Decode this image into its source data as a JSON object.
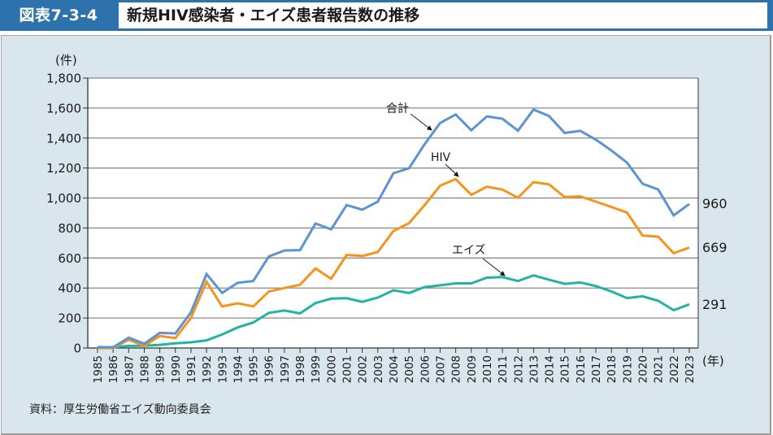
{
  "header": {
    "figure_label": "図表7-3-4",
    "title": "新規HIV感染者・エイズ患者報告数の推移"
  },
  "source": "資料：厚生労働省エイズ動向委員会",
  "colors": {
    "total": "#5b93d3",
    "hiv": "#f7941d",
    "aids": "#21b3a3",
    "header_bg": "#2e72ad",
    "panel_bg": "#dae6ee"
  },
  "chart_data": {
    "type": "line",
    "title": "新規HIV感染者・エイズ患者報告数の推移",
    "ylabel": "(件)",
    "xlabel": "(年)",
    "ylim": [
      0,
      1800
    ],
    "yticks": [
      0,
      200,
      400,
      600,
      800,
      1000,
      1200,
      1400,
      1600,
      1800
    ],
    "ytick_labels": [
      "0",
      "200",
      "400",
      "600",
      "800",
      "1,000",
      "1,200",
      "1,400",
      "1,600",
      "1,800"
    ],
    "grid": true,
    "x": [
      "1985",
      "1986",
      "1987",
      "1988",
      "1989",
      "1990",
      "1991",
      "1992",
      "1993",
      "1994",
      "1995",
      "1996",
      "1997",
      "1998",
      "1999",
      "2000",
      "2001",
      "2002",
      "2003",
      "2004",
      "2005",
      "2006",
      "2007",
      "2008",
      "2009",
      "2010",
      "2011",
      "2012",
      "2013",
      "2014",
      "2015",
      "2016",
      "2017",
      "2018",
      "2019",
      "2020",
      "2021",
      "2022",
      "2023"
    ],
    "series": [
      {
        "name": "合計",
        "key": "total",
        "values": [
          6,
          5,
          69,
          29,
          101,
          97,
          238,
          493,
          367,
          435,
          447,
          610,
          650,
          653,
          830,
          791,
          953,
          922,
          976,
          1165,
          1199,
          1358,
          1500,
          1557,
          1452,
          1544,
          1529,
          1449,
          1590,
          1546,
          1434,
          1448,
          1389,
          1317,
          1236,
          1095,
          1057,
          884,
          960
        ],
        "end_label": "960"
      },
      {
        "name": "HIV",
        "key": "hiv",
        "values": [
          0,
          0,
          55,
          14,
          80,
          66,
          200,
          442,
          277,
          298,
          277,
          376,
          400,
          422,
          530,
          462,
          621,
          614,
          640,
          780,
          832,
          952,
          1082,
          1126,
          1021,
          1075,
          1056,
          1002,
          1106,
          1091,
          1006,
          1011,
          976,
          940,
          903,
          750,
          742,
          632,
          669
        ],
        "end_label": "669"
      },
      {
        "name": "エイズ",
        "key": "aids",
        "values": [
          6,
          5,
          14,
          15,
          21,
          31,
          38,
          51,
          90,
          137,
          170,
          234,
          250,
          231,
          300,
          329,
          332,
          308,
          336,
          385,
          367,
          406,
          418,
          431,
          431,
          469,
          473,
          447,
          484,
          455,
          428,
          437,
          413,
          377,
          333,
          345,
          315,
          252,
          291
        ],
        "end_label": "291"
      }
    ],
    "annotations": [
      {
        "text": "合計",
        "series": "total",
        "year": "2007"
      },
      {
        "text": "HIV",
        "series": "hiv",
        "year": "2008"
      },
      {
        "text": "エイズ",
        "series": "aids",
        "year": "2011"
      }
    ]
  }
}
